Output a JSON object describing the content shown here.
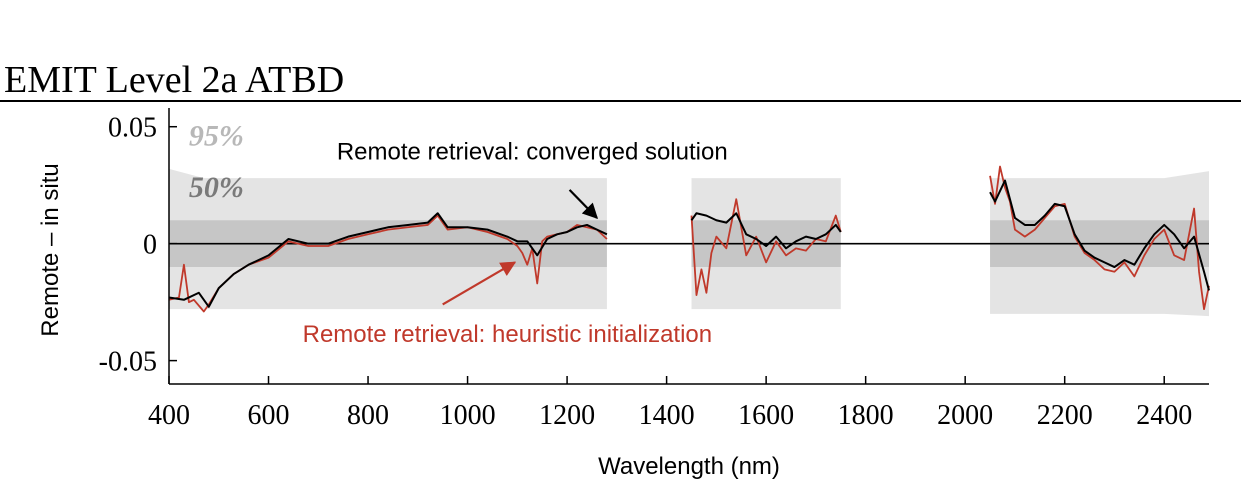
{
  "header": {
    "title": "EMIT Level 2a ATBD"
  },
  "chart_data": {
    "type": "line",
    "xlabel": "Wavelength (nm)",
    "ylabel": "Remote – in situ",
    "xlim": [
      400,
      2490
    ],
    "ylim": [
      -0.06,
      0.058
    ],
    "xticks": [
      400,
      600,
      800,
      1000,
      1200,
      1400,
      1600,
      1800,
      2000,
      2200,
      2400
    ],
    "yticks": [
      {
        "value": -0.05,
        "label": "-0.05"
      },
      {
        "value": 0,
        "label": "0"
      },
      {
        "value": 0.05,
        "label": "0.05"
      }
    ],
    "grid": false,
    "zero_line": true,
    "colors": {
      "converged": "#000000",
      "heuristic": "#c0392b",
      "band95": "#e4e4e4",
      "band50": "#c6c6c6",
      "label95": "#b8b8b8",
      "label50": "#7a7a7a"
    },
    "bands": [
      {
        "label": "95%",
        "segments": [
          {
            "x": [
              400,
              470,
              690,
              1280
            ],
            "upper": [
              0.032,
              0.028,
              0.028,
              0.028
            ],
            "lower": [
              -0.028,
              -0.028,
              -0.028,
              -0.028
            ]
          },
          {
            "x": [
              1450,
              1750
            ],
            "upper": [
              0.028,
              0.028
            ],
            "lower": [
              -0.028,
              -0.028
            ]
          },
          {
            "x": [
              2050,
              2400,
              2490
            ],
            "upper": [
              0.028,
              0.028,
              0.031
            ],
            "lower": [
              -0.03,
              -0.03,
              -0.031
            ]
          }
        ]
      },
      {
        "label": "50%",
        "segments": [
          {
            "x": [
              400,
              1280
            ],
            "upper": [
              0.01,
              0.01
            ],
            "lower": [
              -0.01,
              -0.01
            ]
          },
          {
            "x": [
              1450,
              1750
            ],
            "upper": [
              0.01,
              0.01
            ],
            "lower": [
              -0.01,
              -0.01
            ]
          },
          {
            "x": [
              2050,
              2490
            ],
            "upper": [
              0.01,
              0.01
            ],
            "lower": [
              -0.01,
              -0.01
            ]
          }
        ]
      }
    ],
    "series": [
      {
        "key": "heuristic",
        "segments": [
          {
            "x": [
              400,
              420,
              430,
              440,
              450,
              470,
              480,
              500,
              530,
              560,
              600,
              640,
              680,
              720,
              760,
              800,
              840,
              880,
              920,
              940,
              960,
              1000,
              1040,
              1080,
              1100,
              1110,
              1120,
              1130,
              1140,
              1150,
              1160,
              1180,
              1200,
              1220,
              1240,
              1260,
              1280
            ],
            "y": [
              -0.024,
              -0.023,
              -0.009,
              -0.025,
              -0.024,
              -0.029,
              -0.026,
              -0.019,
              -0.013,
              -0.009,
              -0.006,
              0.001,
              -0.001,
              -0.001,
              0.002,
              0.004,
              0.006,
              0.007,
              0.008,
              0.012,
              0.006,
              0.007,
              0.005,
              0.002,
              -0.001,
              -0.004,
              -0.009,
              -0.002,
              -0.017,
              0.001,
              0.003,
              0.004,
              0.005,
              0.008,
              0.007,
              0.006,
              0.002
            ]
          },
          {
            "x": [
              1450,
              1460,
              1470,
              1480,
              1490,
              1500,
              1520,
              1540,
              1560,
              1580,
              1600,
              1620,
              1640,
              1660,
              1680,
              1700,
              1720,
              1740,
              1750
            ],
            "y": [
              0.012,
              -0.022,
              -0.011,
              -0.021,
              -0.004,
              0.003,
              -0.002,
              0.019,
              -0.005,
              0.003,
              -0.008,
              0.001,
              -0.005,
              -0.002,
              -0.003,
              0.002,
              0.001,
              0.012,
              0.005
            ]
          },
          {
            "x": [
              2050,
              2060,
              2070,
              2080,
              2090,
              2100,
              2120,
              2140,
              2160,
              2180,
              2200,
              2220,
              2240,
              2260,
              2280,
              2300,
              2320,
              2340,
              2360,
              2380,
              2400,
              2420,
              2440,
              2460,
              2470,
              2480,
              2490
            ],
            "y": [
              0.029,
              0.017,
              0.033,
              0.024,
              0.018,
              0.006,
              0.003,
              0.006,
              0.011,
              0.016,
              0.017,
              0.003,
              -0.004,
              -0.007,
              -0.011,
              -0.012,
              -0.008,
              -0.014,
              -0.005,
              0.002,
              0.006,
              -0.005,
              -0.007,
              0.015,
              -0.012,
              -0.028,
              -0.018
            ]
          }
        ]
      },
      {
        "key": "converged",
        "segments": [
          {
            "x": [
              400,
              430,
              460,
              480,
              500,
              530,
              560,
              600,
              640,
              680,
              720,
              760,
              800,
              840,
              880,
              920,
              940,
              960,
              1000,
              1040,
              1080,
              1100,
              1120,
              1140,
              1160,
              1180,
              1200,
              1220,
              1240,
              1260,
              1280
            ],
            "y": [
              -0.023,
              -0.024,
              -0.021,
              -0.027,
              -0.019,
              -0.013,
              -0.009,
              -0.005,
              0.002,
              0.0,
              0.0,
              0.003,
              0.005,
              0.007,
              0.008,
              0.009,
              0.013,
              0.007,
              0.007,
              0.006,
              0.003,
              0.001,
              0.001,
              -0.005,
              0.002,
              0.004,
              0.005,
              0.007,
              0.008,
              0.006,
              0.004
            ]
          },
          {
            "x": [
              1450,
              1460,
              1480,
              1500,
              1520,
              1540,
              1560,
              1580,
              1600,
              1620,
              1640,
              1660,
              1680,
              1700,
              1720,
              1740,
              1750
            ],
            "y": [
              0.01,
              0.013,
              0.012,
              0.01,
              0.009,
              0.013,
              0.004,
              0.002,
              -0.001,
              0.003,
              -0.002,
              0.001,
              0.003,
              0.002,
              0.004,
              0.008,
              0.005
            ]
          },
          {
            "x": [
              2050,
              2060,
              2080,
              2100,
              2120,
              2140,
              2160,
              2180,
              2200,
              2220,
              2240,
              2260,
              2280,
              2300,
              2320,
              2340,
              2360,
              2380,
              2400,
              2420,
              2440,
              2460,
              2480,
              2490
            ],
            "y": [
              0.022,
              0.018,
              0.027,
              0.011,
              0.008,
              0.008,
              0.012,
              0.017,
              0.016,
              0.004,
              -0.003,
              -0.006,
              -0.008,
              -0.01,
              -0.007,
              -0.009,
              -0.002,
              0.004,
              0.008,
              0.004,
              -0.002,
              0.003,
              -0.012,
              -0.02
            ]
          }
        ]
      }
    ],
    "band_labels": [
      {
        "text": "95%",
        "x": 440,
        "y": 0.042
      },
      {
        "text": "50%",
        "x": 440,
        "y": 0.02
      }
    ],
    "annotations": [
      {
        "key": "converged",
        "text": "Remote retrieval: converged solution",
        "text_x": 1130,
        "text_y": 0.036,
        "arrow_from": [
          1205,
          0.023
        ],
        "arrow_to": [
          1260,
          0.011
        ]
      },
      {
        "key": "heuristic",
        "text": "Remote retrieval: heuristic initialization",
        "text_x": 1080,
        "text_y": -0.042,
        "arrow_from": [
          950,
          -0.026
        ],
        "arrow_to": [
          1095,
          -0.008
        ]
      }
    ]
  }
}
